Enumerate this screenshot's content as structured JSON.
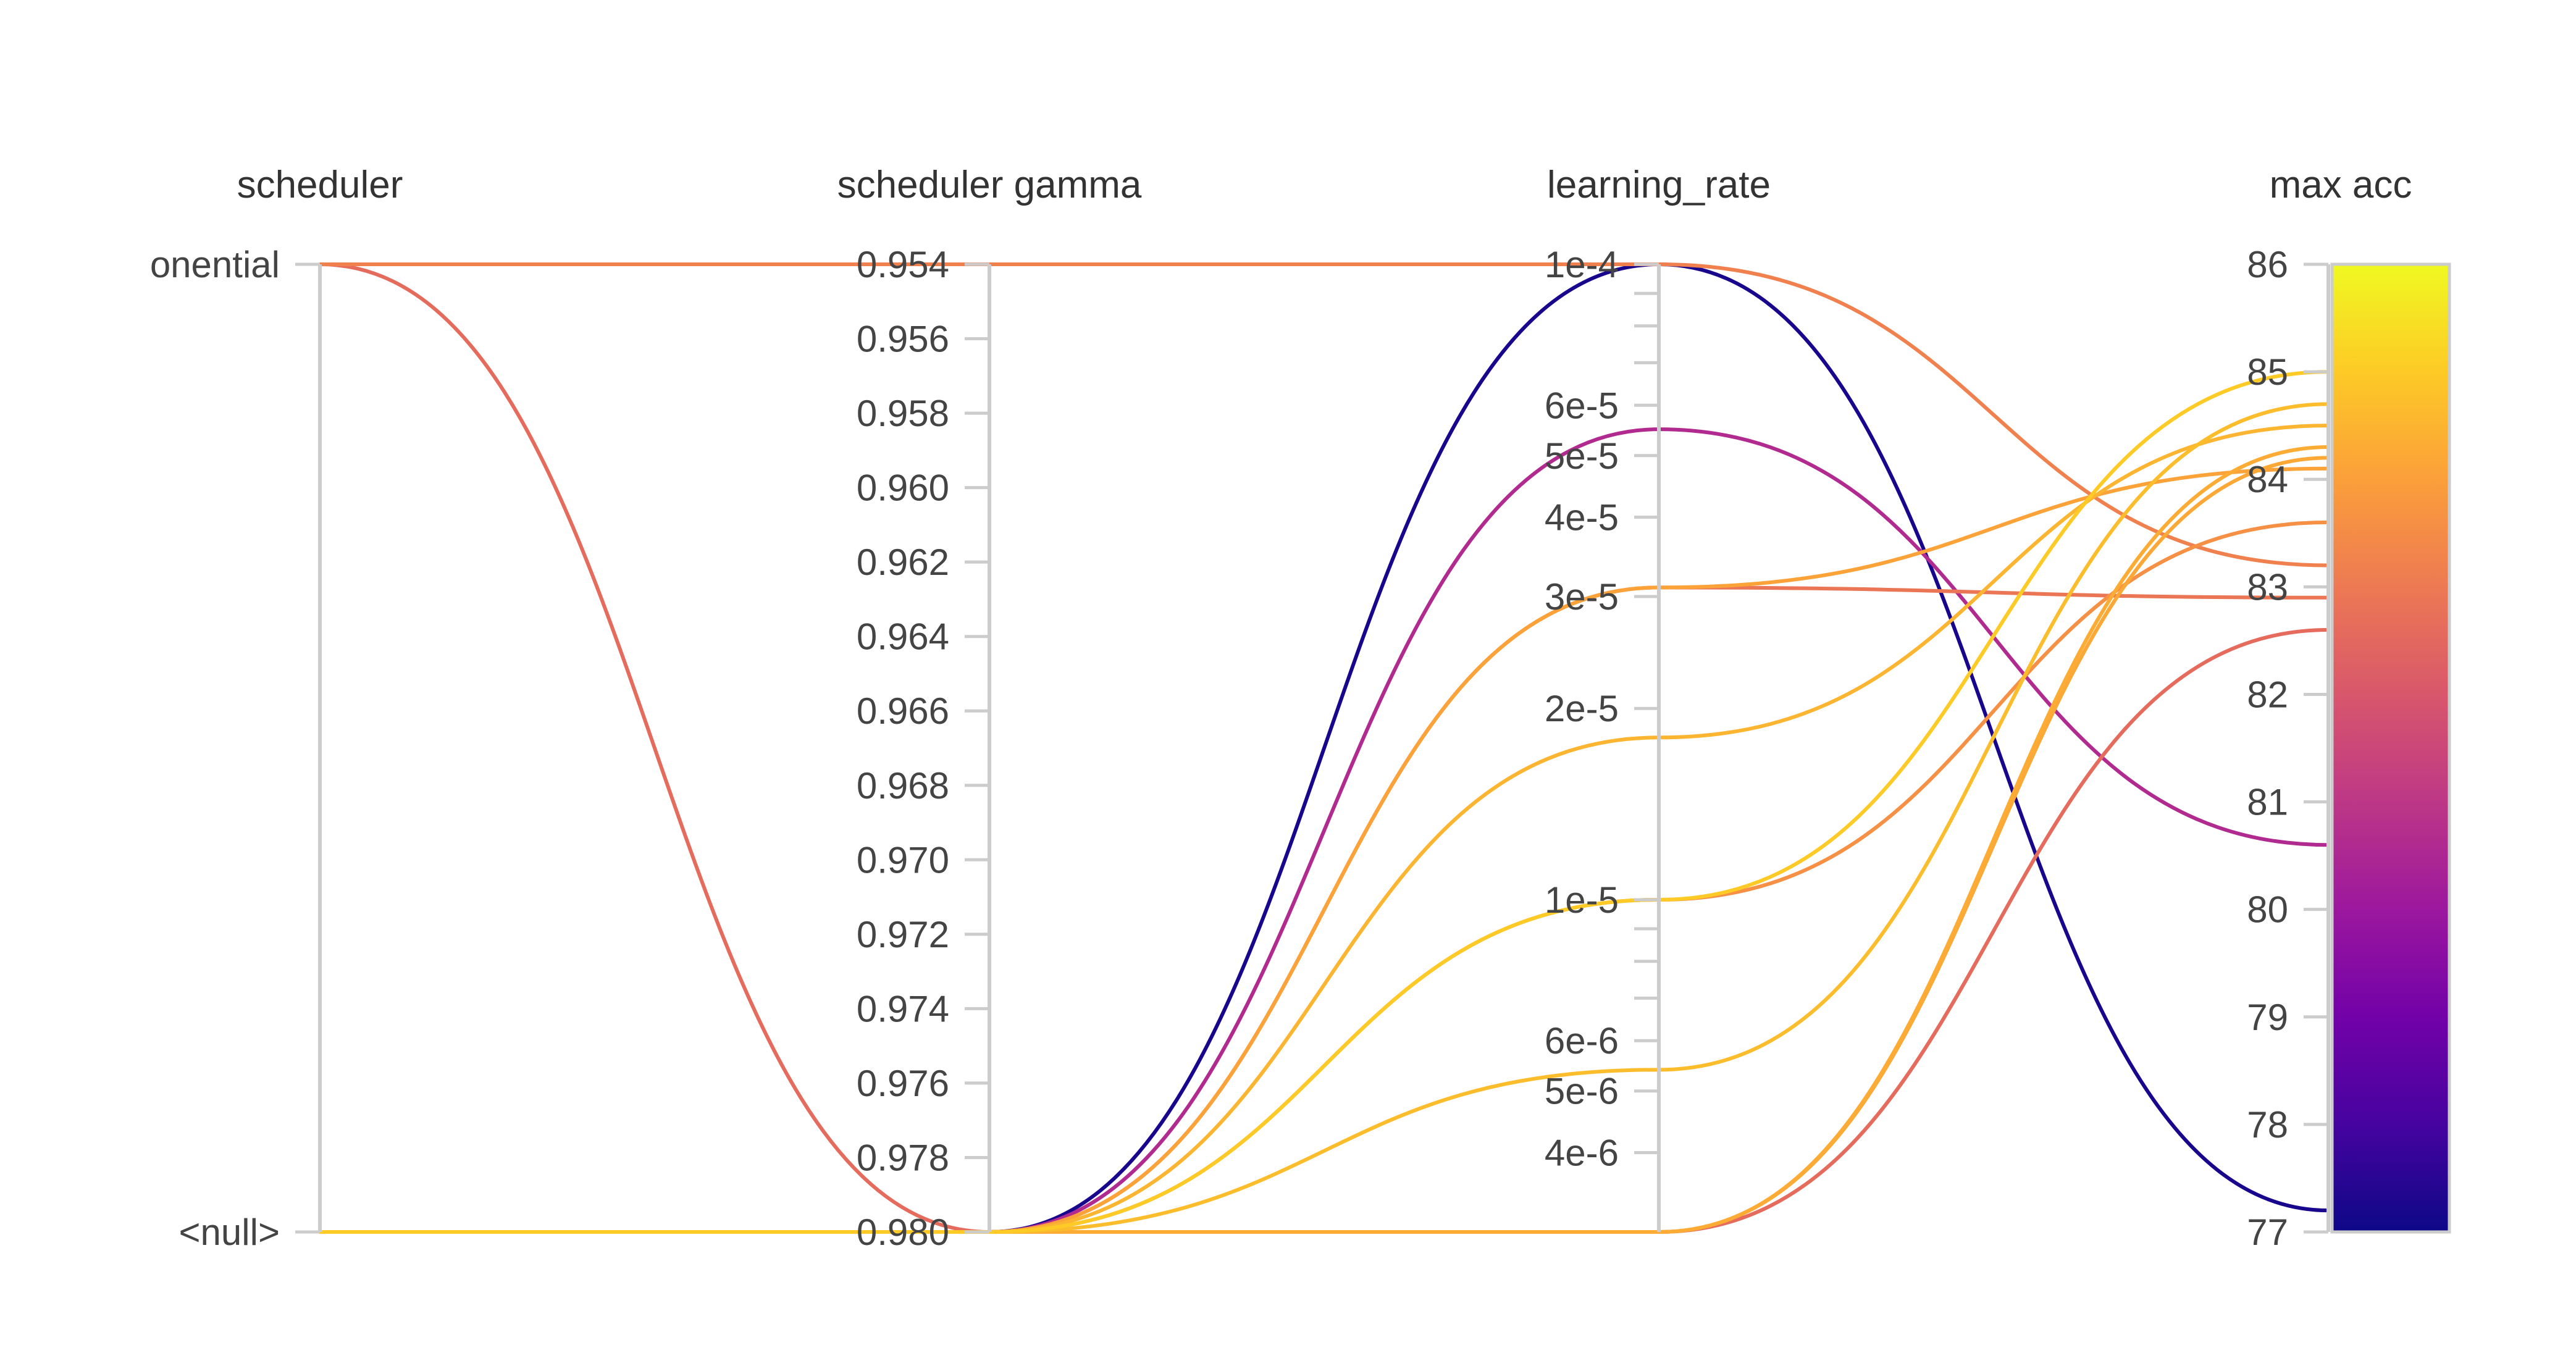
{
  "chart_data": {
    "type": "parallel_coordinates",
    "axes": [
      {
        "key": "scheduler",
        "label": "scheduler",
        "categorical": true,
        "categories": [
          "<null>",
          "exponential"
        ],
        "tick_labels": [
          "<null>",
          "onential"
        ]
      },
      {
        "key": "gamma",
        "label": "scheduler gamma",
        "range": [
          0.954,
          0.98
        ],
        "inverted": true,
        "ticks": [
          "0.954",
          "0.956",
          "0.958",
          "0.960",
          "0.962",
          "0.964",
          "0.966",
          "0.968",
          "0.970",
          "0.972",
          "0.974",
          "0.976",
          "0.978",
          "0.980"
        ]
      },
      {
        "key": "lr",
        "label": "learning_rate",
        "scale": "log",
        "range": [
          3e-06,
          0.0001
        ],
        "labeled_ticks": [
          {
            "value": 0.0001,
            "label": "1e-4"
          },
          {
            "value": 6e-05,
            "label": "6e-5"
          },
          {
            "value": 5e-05,
            "label": "5e-5"
          },
          {
            "value": 4e-05,
            "label": "4e-5"
          },
          {
            "value": 3e-05,
            "label": "3e-5"
          },
          {
            "value": 2e-05,
            "label": "2e-5"
          },
          {
            "value": 1e-05,
            "label": "1e-5"
          },
          {
            "value": 6e-06,
            "label": "6e-6"
          },
          {
            "value": 5e-06,
            "label": "5e-6"
          },
          {
            "value": 4e-06,
            "label": "4e-6"
          }
        ],
        "minor_ticks": [
          9e-05,
          8e-05,
          7e-05,
          9e-06,
          8e-06,
          7e-06
        ]
      },
      {
        "key": "acc",
        "label": "max acc",
        "range": [
          77,
          86
        ],
        "ticks": [
          "86",
          "85",
          "84",
          "83",
          "82",
          "81",
          "80",
          "79",
          "78",
          "77"
        ]
      }
    ],
    "colorscale": {
      "name": "plasma",
      "range": [
        77,
        86
      ],
      "stops": [
        "#0d0887",
        "#46039f",
        "#7201a8",
        "#9c179e",
        "#bd3786",
        "#d8576b",
        "#ed7953",
        "#fb9f3a",
        "#fdca26",
        "#f0f921"
      ]
    },
    "runs": [
      {
        "scheduler": "exponential",
        "gamma": 0.954,
        "lr": 0.0001,
        "acc": 83.2
      },
      {
        "scheduler": "exponential",
        "gamma": 0.98,
        "lr": 3e-06,
        "acc": 82.6
      },
      {
        "scheduler": "<null>",
        "gamma": 0.98,
        "lr": 0.0001,
        "acc": 77.2
      },
      {
        "scheduler": "<null>",
        "gamma": 0.98,
        "lr": 5.5e-05,
        "acc": 80.6
      },
      {
        "scheduler": "<null>",
        "gamma": 0.98,
        "lr": 3.1e-05,
        "acc": 82.9
      },
      {
        "scheduler": "<null>",
        "gamma": 0.98,
        "lr": 3.1e-05,
        "acc": 84.1
      },
      {
        "scheduler": "<null>",
        "gamma": 0.98,
        "lr": 1.8e-05,
        "acc": 84.5
      },
      {
        "scheduler": "<null>",
        "gamma": 0.98,
        "lr": 1e-05,
        "acc": 83.6
      },
      {
        "scheduler": "<null>",
        "gamma": 0.98,
        "lr": 1e-05,
        "acc": 85.0
      },
      {
        "scheduler": "<null>",
        "gamma": 0.98,
        "lr": 5.4e-06,
        "acc": 84.7
      },
      {
        "scheduler": "<null>",
        "gamma": 0.98,
        "lr": 3e-06,
        "acc": 84.3
      },
      {
        "scheduler": "<null>",
        "gamma": 0.98,
        "lr": 3e-06,
        "acc": 84.2
      }
    ]
  }
}
